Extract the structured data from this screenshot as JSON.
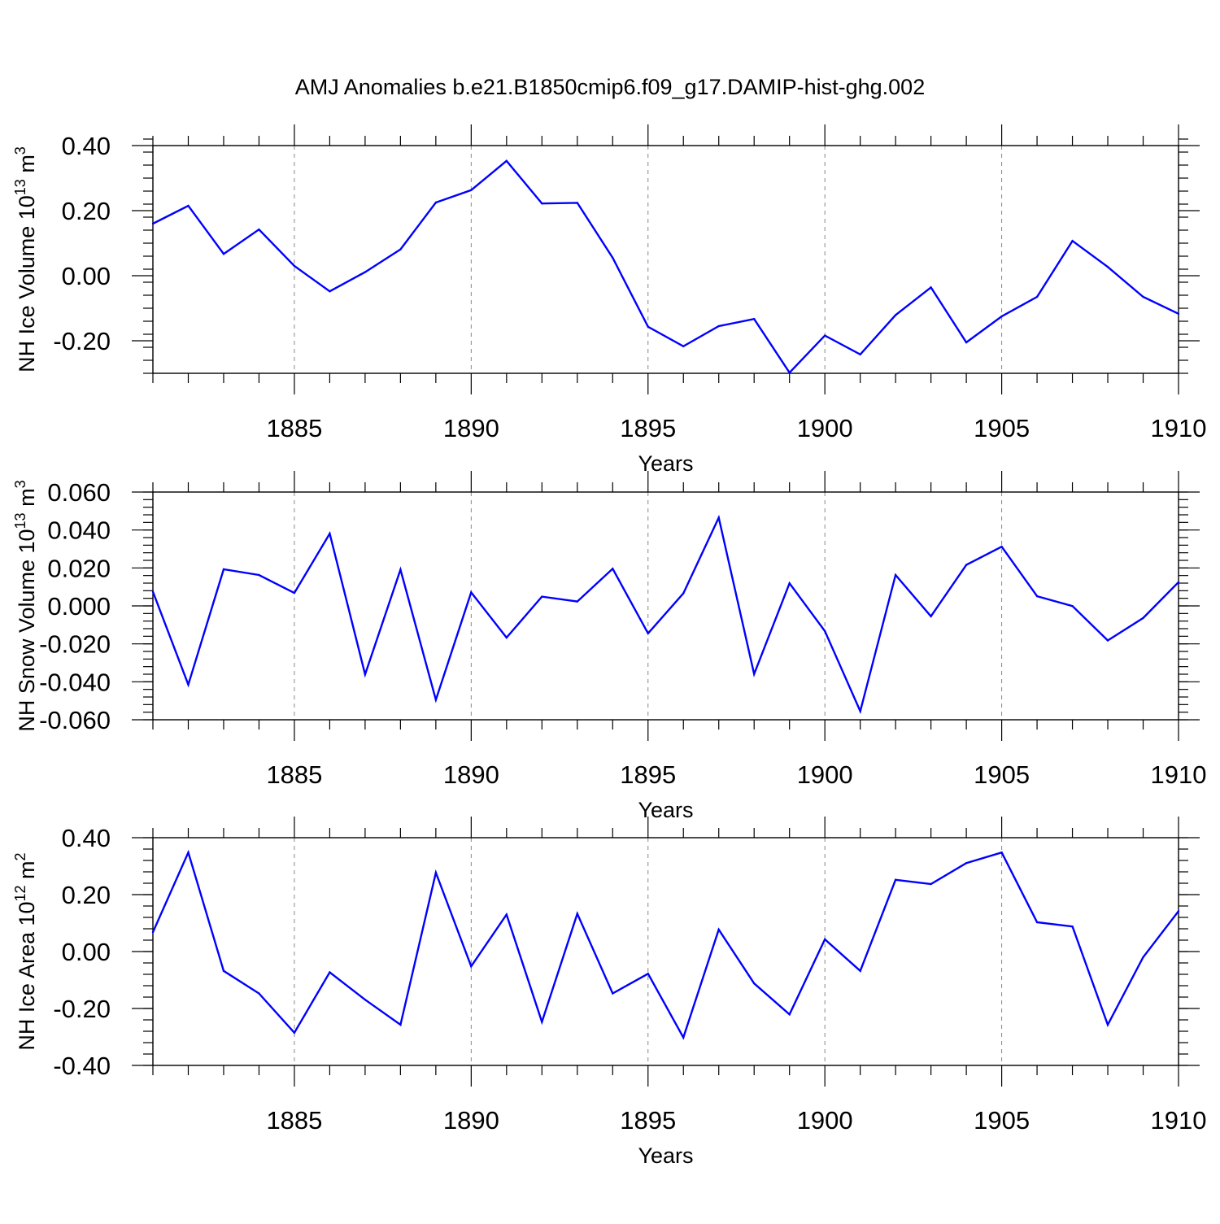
{
  "figure": {
    "title": "AMJ Anomalies b.e21.B1850cmip6.f09_g17.DAMIP-hist-ghg.002",
    "line_color": "#0000ff",
    "grid_color": "#888888"
  },
  "chart_data": [
    {
      "type": "line",
      "panel": "ice-volume",
      "title": "",
      "xlabel": "Years",
      "ylabel": "NH Ice Volume 10",
      "ylabel_exp": "13",
      "ylabel_unit": " m",
      "ylabel_unit_exp": "3",
      "xlim": [
        1881,
        1910
      ],
      "ylim": [
        -0.3,
        0.4
      ],
      "xticks": [
        "1885",
        "1890",
        "1895",
        "1900",
        "1905",
        "1910"
      ],
      "yticks": [
        "0.40",
        "0.20",
        "0.00",
        "-0.20"
      ],
      "ytick_values": [
        0.4,
        0.2,
        0.0,
        -0.2
      ],
      "minor_y_step": 0.04,
      "grid": true,
      "series": [
        {
          "name": "NH Ice Volume",
          "x": [
            1881,
            1882,
            1883,
            1884,
            1885,
            1886,
            1887,
            1888,
            1889,
            1890,
            1891,
            1892,
            1893,
            1894,
            1895,
            1896,
            1897,
            1898,
            1899,
            1900,
            1901,
            1902,
            1903,
            1904,
            1905,
            1906,
            1907,
            1908,
            1909,
            1910
          ],
          "values": [
            0.16,
            0.215,
            0.067,
            0.142,
            0.03,
            -0.048,
            0.011,
            0.081,
            0.225,
            0.263,
            0.353,
            0.222,
            0.224,
            0.055,
            -0.157,
            -0.217,
            -0.155,
            -0.133,
            -0.298,
            -0.184,
            -0.242,
            -0.121,
            -0.036,
            -0.205,
            -0.125,
            -0.065,
            0.107,
            0.027,
            -0.065,
            -0.117
          ]
        }
      ]
    },
    {
      "type": "line",
      "panel": "snow-volume",
      "title": "",
      "xlabel": "Years",
      "ylabel": "NH Snow Volume 10",
      "ylabel_exp": "13",
      "ylabel_unit": " m",
      "ylabel_unit_exp": "3",
      "xlim": [
        1881,
        1910
      ],
      "ylim": [
        -0.06,
        0.06
      ],
      "xticks": [
        "1885",
        "1890",
        "1895",
        "1900",
        "1905",
        "1910"
      ],
      "yticks": [
        "0.060",
        "0.040",
        "0.020",
        "0.000",
        "-0.020",
        "-0.040",
        "-0.060"
      ],
      "ytick_values": [
        0.06,
        0.04,
        0.02,
        0.0,
        -0.02,
        -0.04,
        -0.06
      ],
      "minor_y_step": 0.004,
      "grid": true,
      "series": [
        {
          "name": "NH Snow Volume",
          "x": [
            1881,
            1882,
            1883,
            1884,
            1885,
            1886,
            1887,
            1888,
            1889,
            1890,
            1891,
            1892,
            1893,
            1894,
            1895,
            1896,
            1897,
            1898,
            1899,
            1900,
            1901,
            1902,
            1903,
            1904,
            1905,
            1906,
            1907,
            1908,
            1909,
            1910
          ],
          "values": [
            0.0075,
            -0.0415,
            0.0193,
            0.0163,
            0.0068,
            0.0381,
            -0.0361,
            0.0191,
            -0.0495,
            0.0071,
            -0.0167,
            0.0049,
            0.0023,
            0.0196,
            -0.0145,
            0.0066,
            0.0465,
            -0.0359,
            0.0119,
            -0.0133,
            -0.0555,
            0.0163,
            -0.0055,
            0.0216,
            0.0312,
            0.0051,
            -0.0001,
            -0.0182,
            -0.0064,
            0.0125
          ]
        }
      ]
    },
    {
      "type": "line",
      "panel": "ice-area",
      "title": "",
      "xlabel": "Years",
      "ylabel": "NH Ice Area 10",
      "ylabel_exp": "12",
      "ylabel_unit": " m",
      "ylabel_unit_exp": "2",
      "xlim": [
        1881,
        1910
      ],
      "ylim": [
        -0.4,
        0.4
      ],
      "xticks": [
        "1885",
        "1890",
        "1895",
        "1900",
        "1905",
        "1910"
      ],
      "yticks": [
        "0.40",
        "0.20",
        "0.00",
        "-0.20",
        "-0.40"
      ],
      "ytick_values": [
        0.4,
        0.2,
        0.0,
        -0.2,
        -0.4
      ],
      "minor_y_step": 0.04,
      "grid": true,
      "series": [
        {
          "name": "NH Ice Area",
          "x": [
            1881,
            1882,
            1883,
            1884,
            1885,
            1886,
            1887,
            1888,
            1889,
            1890,
            1891,
            1892,
            1893,
            1894,
            1895,
            1896,
            1897,
            1898,
            1899,
            1900,
            1901,
            1902,
            1903,
            1904,
            1905,
            1906,
            1907,
            1908,
            1909,
            1910
          ],
          "values": [
            0.068,
            0.348,
            -0.068,
            -0.147,
            -0.285,
            -0.073,
            -0.169,
            -0.257,
            0.277,
            -0.052,
            0.13,
            -0.247,
            0.133,
            -0.147,
            -0.078,
            -0.302,
            0.077,
            -0.112,
            -0.221,
            0.043,
            -0.068,
            0.252,
            0.237,
            0.311,
            0.348,
            0.103,
            0.088,
            -0.257,
            -0.02,
            0.142
          ]
        }
      ]
    }
  ]
}
